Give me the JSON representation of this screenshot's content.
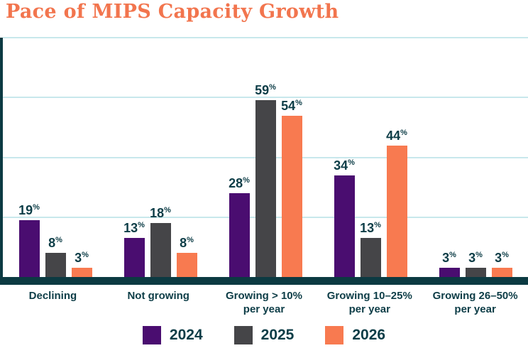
{
  "chart_data": {
    "type": "bar",
    "title": "Pace of MIPS Capacity Growth",
    "categories": [
      "Declining",
      "Not growing",
      "Growing > 10%\nper year",
      "Growing 10–25%\nper year",
      "Growing 26–50%\nper year"
    ],
    "series": [
      {
        "name": "2024",
        "color": "#4A0D70",
        "values": [
          19,
          13,
          28,
          34,
          3
        ]
      },
      {
        "name": "2025",
        "color": "#454548",
        "values": [
          8,
          18,
          59,
          13,
          3
        ]
      },
      {
        "name": "2026",
        "color": "#F87A50",
        "values": [
          3,
          8,
          54,
          44,
          3
        ]
      }
    ],
    "xlabel": "",
    "ylabel": "",
    "ylim": [
      0,
      80
    ],
    "gridline_step": 20,
    "value_suffix": "%",
    "grid": true,
    "legend_position": "bottom"
  },
  "styles": {
    "title_color": "#F2754E",
    "axis_color": "#0C3A42",
    "gridline_color": "#C8E8EC",
    "label_color": "#0D3D47",
    "background": "#FFFFFF"
  }
}
